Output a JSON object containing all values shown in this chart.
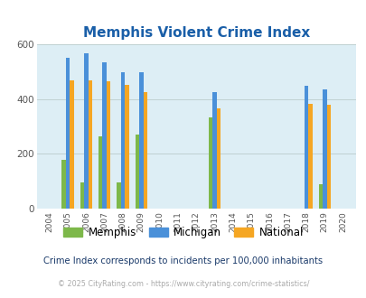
{
  "title": "Memphis Violent Crime Index",
  "years": [
    2004,
    2005,
    2006,
    2007,
    2008,
    2009,
    2010,
    2011,
    2012,
    2013,
    2014,
    2015,
    2016,
    2017,
    2018,
    2019,
    2020
  ],
  "memphis": [
    null,
    180,
    95,
    265,
    95,
    270,
    null,
    null,
    null,
    335,
    null,
    null,
    null,
    null,
    null,
    90,
    null
  ],
  "michigan": [
    null,
    553,
    567,
    535,
    500,
    498,
    null,
    null,
    null,
    427,
    null,
    null,
    null,
    null,
    450,
    435,
    null
  ],
  "national": [
    null,
    468,
    470,
    465,
    452,
    428,
    null,
    null,
    null,
    366,
    null,
    null,
    null,
    null,
    383,
    381,
    null
  ],
  "memphis_color": "#7db84a",
  "michigan_color": "#4a90d9",
  "national_color": "#f5a623",
  "bg_color": "#ddeef5",
  "title_color": "#1a5fa8",
  "subtitle_color": "#1a3a6a",
  "footer_color": "#aaaaaa",
  "ylim": [
    0,
    600
  ],
  "yticks": [
    0,
    200,
    400,
    600
  ],
  "bar_width": 0.22,
  "subtitle": "Crime Index corresponds to incidents per 100,000 inhabitants",
  "footer": "© 2025 CityRating.com - https://www.cityrating.com/crime-statistics/",
  "legend_labels": [
    "Memphis",
    "Michigan",
    "National"
  ]
}
